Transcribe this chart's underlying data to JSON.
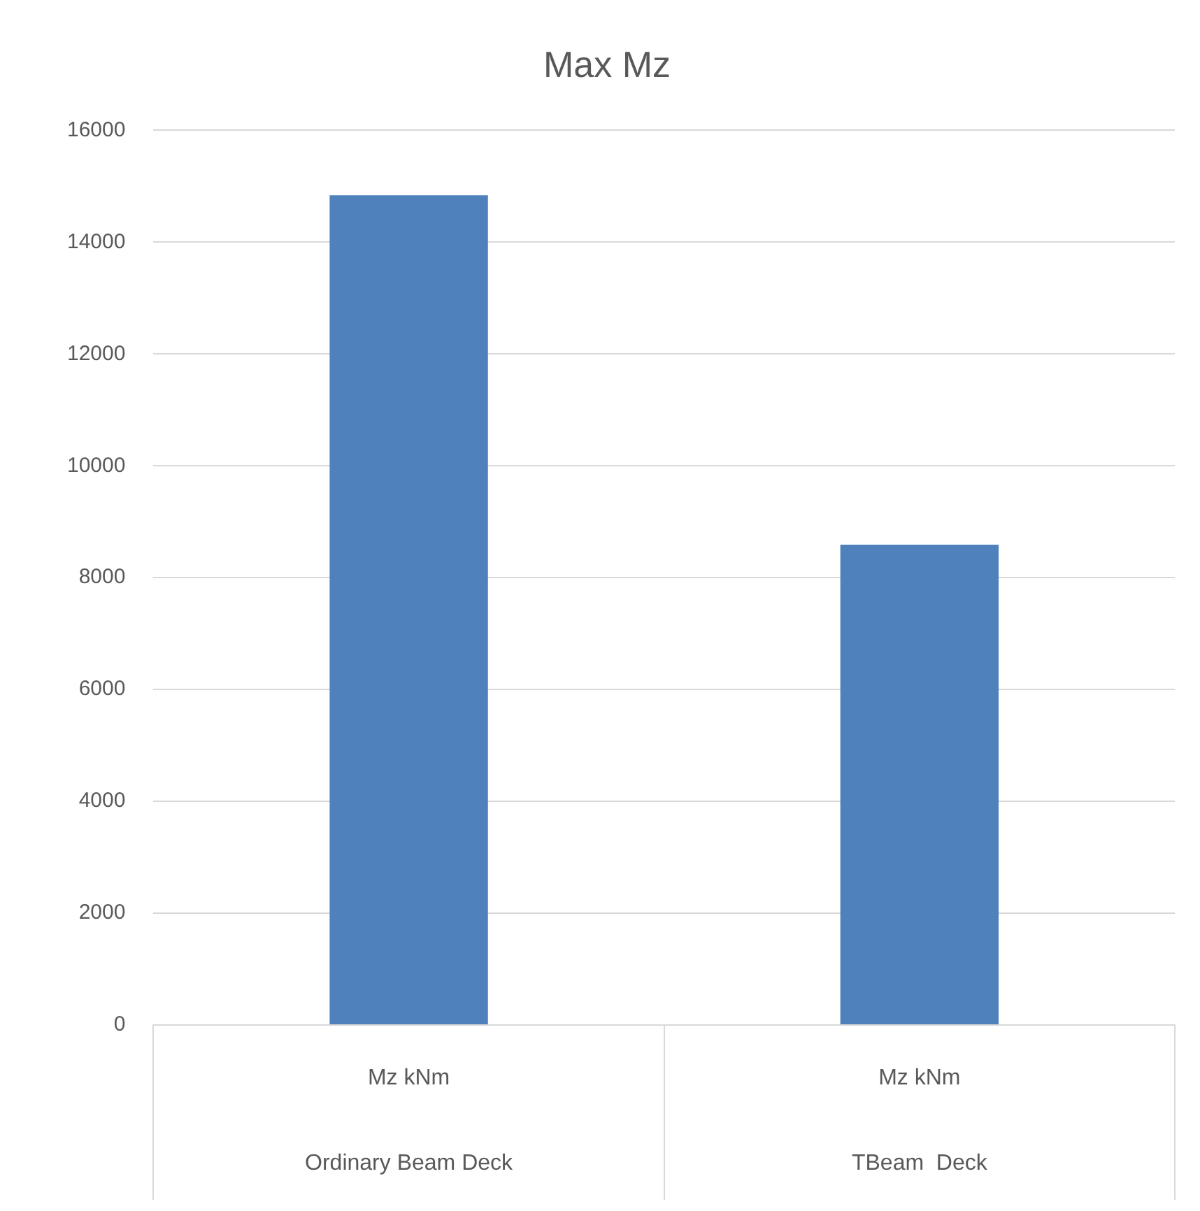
{
  "chart_data": {
    "type": "bar",
    "title": "Max Mz",
    "categories": [
      "Mz kNm\nOrdinary Beam Deck",
      "Mz kNm\nTBeam  Deck"
    ],
    "values": [
      14840,
      8590
    ],
    "color": "#4f81bd",
    "ylim": [
      0,
      16000
    ],
    "yticks": [
      0,
      2000,
      4000,
      6000,
      8000,
      10000,
      12000,
      14000,
      16000
    ],
    "grid": "y",
    "legend": false
  }
}
